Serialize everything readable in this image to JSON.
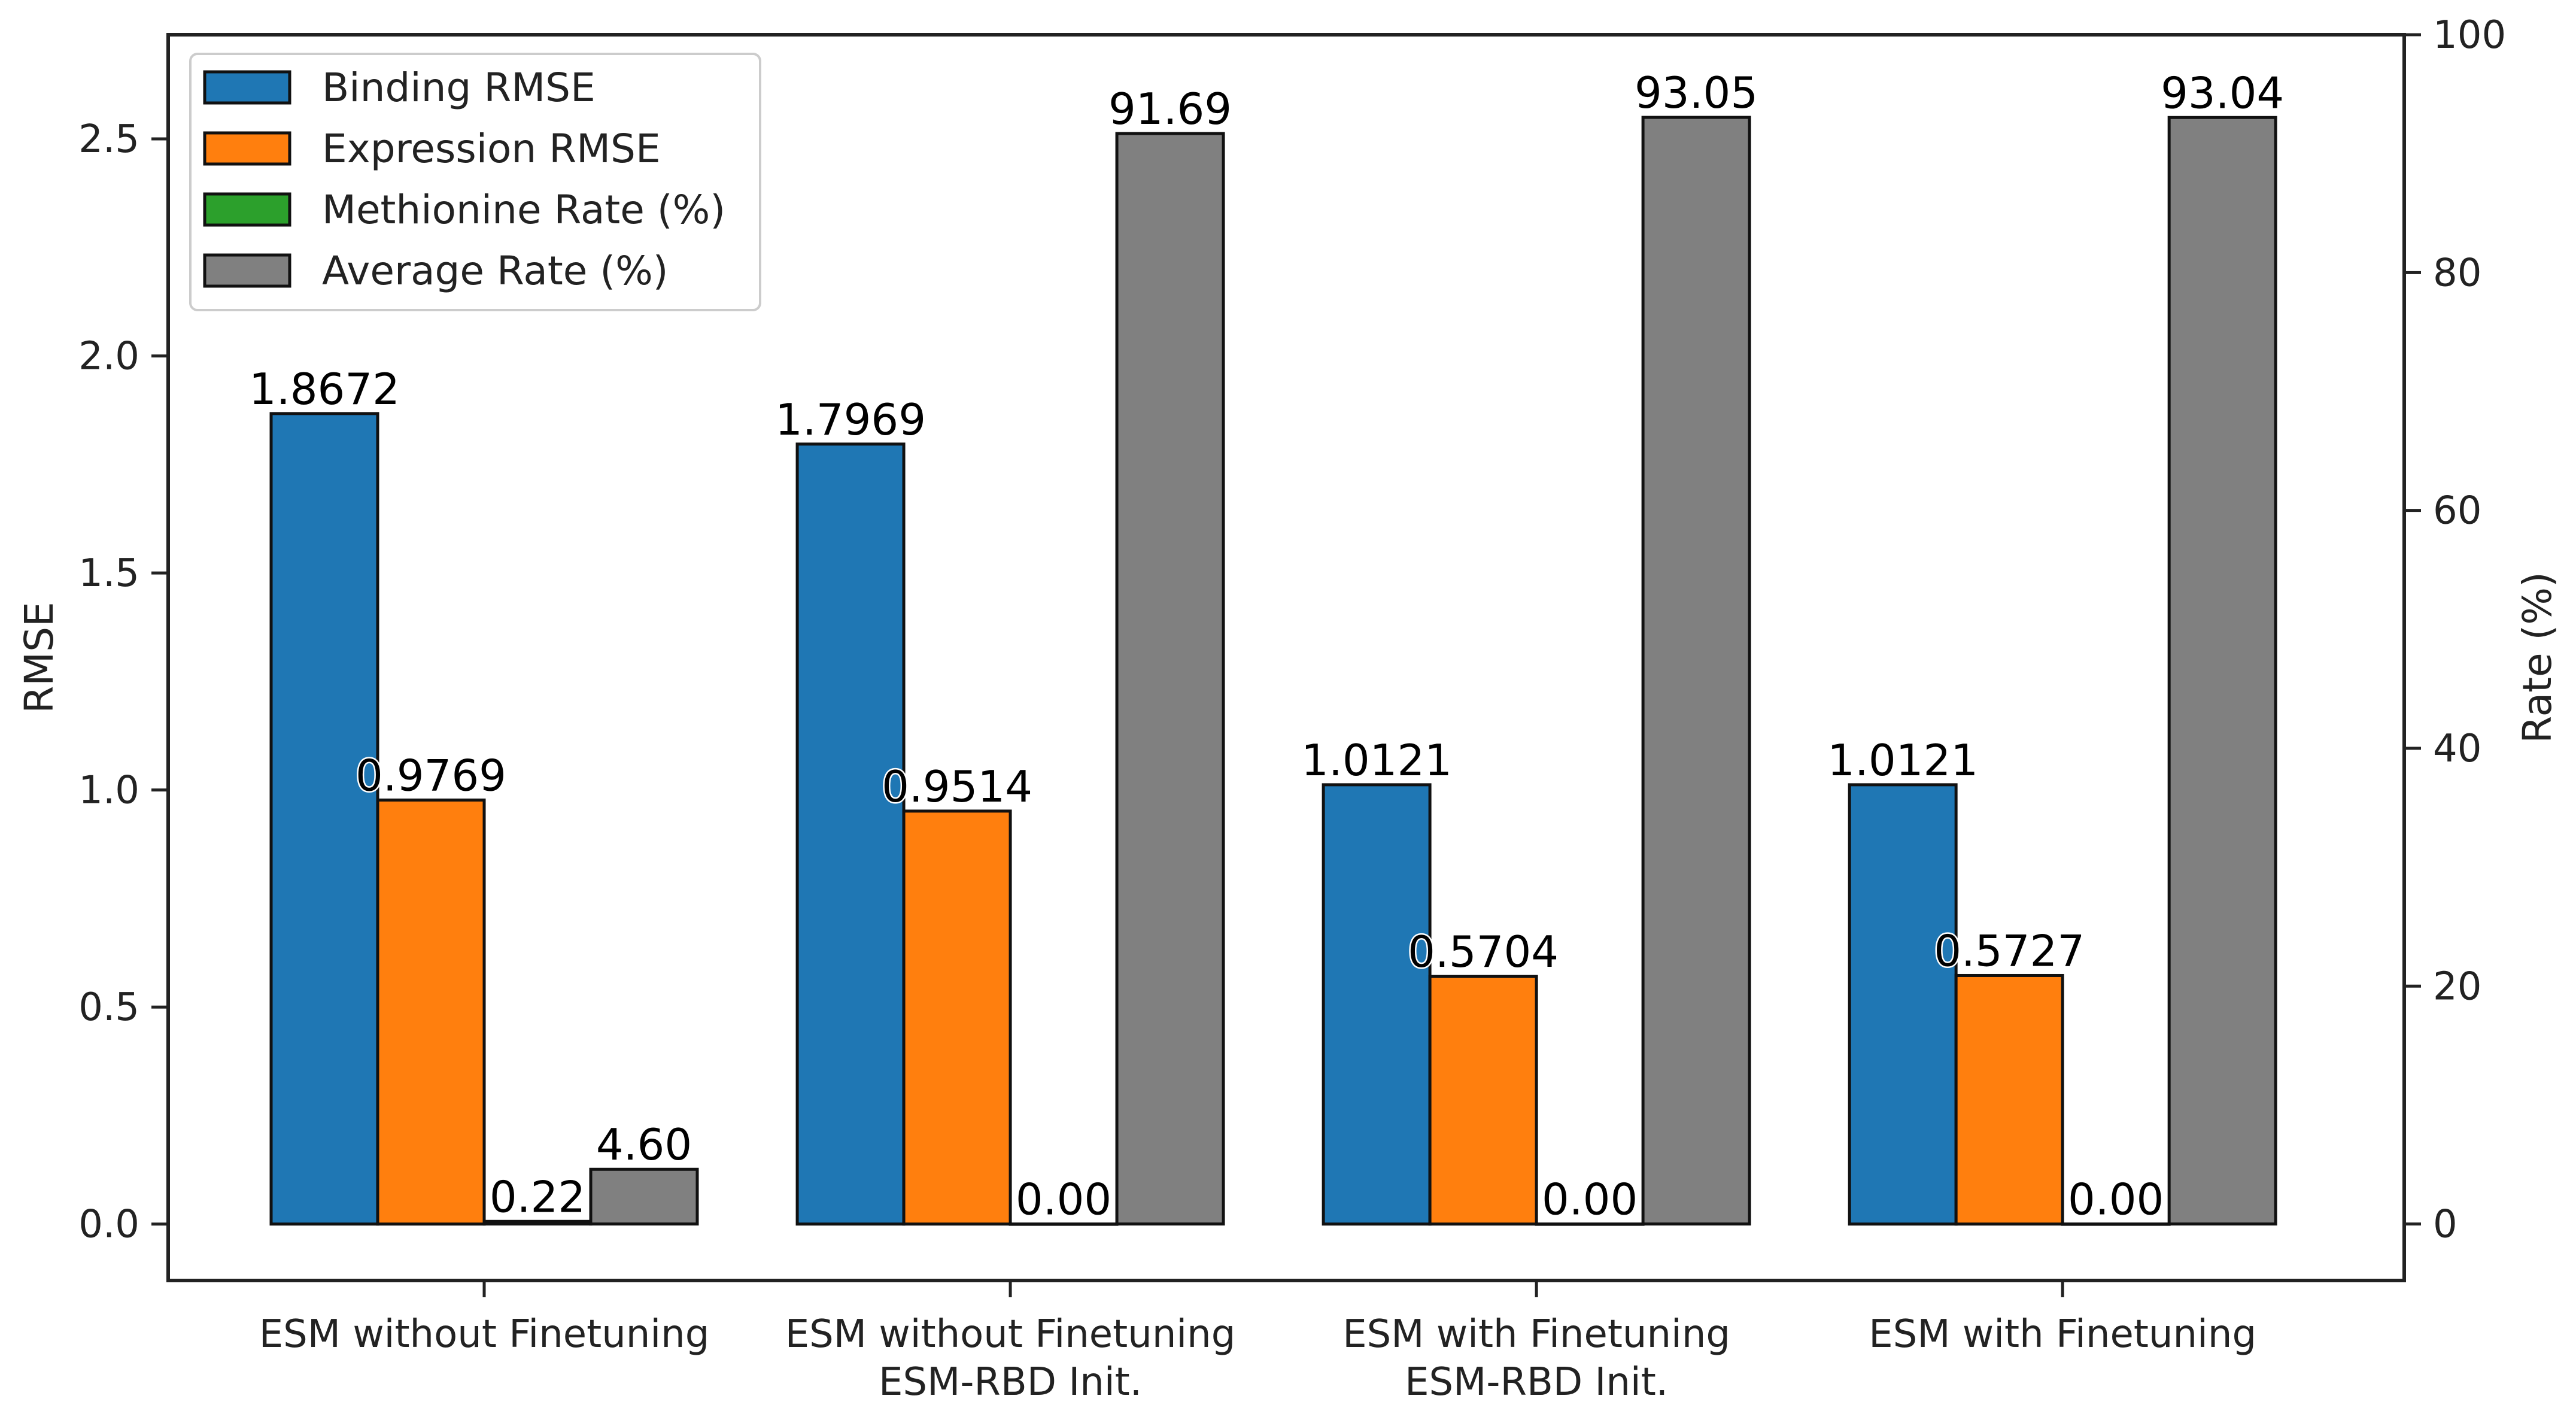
{
  "chart_data": {
    "type": "bar",
    "categories": [
      [
        "ESM without Finetuning"
      ],
      [
        "ESM without Finetuning",
        "ESM-RBD Init."
      ],
      [
        "ESM with Finetuning",
        "ESM-RBD Init."
      ],
      [
        "ESM with Finetuning"
      ]
    ],
    "series": [
      {
        "name": "Binding RMSE",
        "axis": "left",
        "color": "#1f77b4",
        "values": [
          1.8672,
          1.7969,
          1.0121,
          1.0121
        ],
        "labels": [
          "1.8672",
          "1.7969",
          "1.0121",
          "1.0121"
        ]
      },
      {
        "name": "Expression RMSE",
        "axis": "left",
        "color": "#ff7f0e",
        "values": [
          0.9769,
          0.9514,
          0.5704,
          0.5727
        ],
        "labels": [
          "0.9769",
          "0.9514",
          "0.5704",
          "0.5727"
        ]
      },
      {
        "name": "Methionine Rate (%)",
        "axis": "right",
        "color": "#2ca02c",
        "values": [
          0.22,
          0.0,
          0.0,
          0.0
        ],
        "labels": [
          "0.22",
          "0.00",
          "0.00",
          "0.00"
        ]
      },
      {
        "name": "Average Rate (%)",
        "axis": "right",
        "color": "#808080",
        "values": [
          4.6,
          91.69,
          93.05,
          93.04
        ],
        "labels": [
          "4.60",
          "91.69",
          "93.05",
          "93.04"
        ]
      }
    ],
    "xlabel": "",
    "ylabel": "RMSE",
    "y2label": "Rate (%)",
    "ylim": [
      -0.13,
      2.74
    ],
    "y2lim": [
      -4.75,
      100
    ],
    "yticks": [
      0.0,
      0.5,
      1.0,
      1.5,
      2.0,
      2.5
    ],
    "ytick_labels": [
      "0.0",
      "0.5",
      "1.0",
      "1.5",
      "2.0",
      "2.5"
    ],
    "y2ticks": [
      0,
      20,
      40,
      60,
      80,
      100
    ],
    "y2tick_labels": [
      "0",
      "20",
      "40",
      "60",
      "80",
      "100"
    ],
    "legend": "top-left",
    "grid": false
  }
}
